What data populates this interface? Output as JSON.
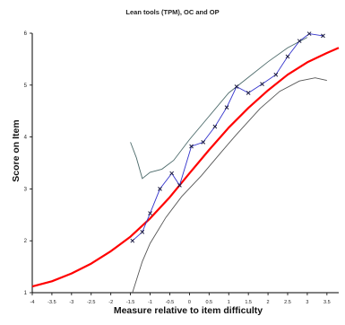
{
  "chart_data": {
    "type": "line",
    "title": "Lean tools (TPM), OC and OP",
    "xlabel": "Measure relative to item difficulty",
    "ylabel": "Score on Item",
    "xlim": [
      -4,
      3.8
    ],
    "ylim": [
      1,
      6
    ],
    "x_ticks": [
      -4,
      -3.5,
      -3,
      -2.5,
      -2,
      -1.5,
      -1,
      -0.5,
      0,
      0.5,
      1,
      1.5,
      2,
      2.5,
      3,
      3.5
    ],
    "x_tick_labels": [
      "-4",
      "-3.5",
      "-3",
      "-2.5",
      "-2",
      "-1.5",
      "-1",
      "-0.5",
      "0",
      "0.5",
      "1",
      "1.5",
      "2",
      "2.5",
      "3",
      "3.5"
    ],
    "y_ticks": [
      1,
      2,
      3,
      4,
      5,
      6
    ],
    "y_tick_labels": [
      "1",
      "2",
      "3",
      "4",
      "5",
      "6"
    ],
    "grid": false,
    "legend": "none",
    "colors": {
      "model_curve": "#ff0000",
      "observed": "#3333cc",
      "observed_marker": "#1a1a40",
      "upper_band": "#4d6b6b",
      "lower_band": "#555555",
      "axis": "#000000"
    },
    "series": [
      {
        "x": [
          -4.0,
          -3.5,
          -3.0,
          -2.5,
          -2.0,
          -1.5,
          -1.0,
          -0.5,
          0.0,
          0.5,
          1.0,
          1.5,
          2.0,
          2.5,
          3.0,
          3.5,
          3.8
        ],
        "y": [
          1.12,
          1.22,
          1.37,
          1.56,
          1.8,
          2.08,
          2.43,
          2.84,
          3.3,
          3.75,
          4.18,
          4.56,
          4.9,
          5.2,
          5.44,
          5.62,
          5.72
        ]
      },
      {
        "x": [
          -1.45,
          -1.2,
          -1.0,
          -0.75,
          -0.45,
          -0.25,
          0.05,
          0.35,
          0.65,
          0.95,
          1.2,
          1.5,
          1.85,
          2.2,
          2.5,
          2.8,
          3.05,
          3.4
        ],
        "y": [
          2.0,
          2.17,
          2.53,
          3.0,
          3.3,
          3.07,
          3.82,
          3.9,
          4.2,
          4.57,
          4.97,
          4.85,
          5.02,
          5.2,
          5.55,
          5.85,
          5.99,
          5.95
        ]
      },
      {
        "x": [
          -1.5,
          -1.35,
          -1.2,
          -1.0,
          -0.7,
          -0.4,
          0.0,
          0.5,
          1.0,
          1.5,
          2.0,
          2.5,
          3.0
        ],
        "y": [
          3.9,
          3.6,
          3.2,
          3.32,
          3.38,
          3.55,
          3.95,
          4.4,
          4.85,
          5.15,
          5.45,
          5.72,
          5.92
        ]
      },
      {
        "x": [
          -1.45,
          -1.2,
          -1.0,
          -0.6,
          -0.2,
          0.3,
          0.8,
          1.2,
          1.8,
          2.3,
          2.8,
          3.2,
          3.5
        ],
        "y": [
          1.0,
          1.6,
          1.95,
          2.45,
          2.85,
          3.25,
          3.7,
          4.05,
          4.55,
          4.88,
          5.08,
          5.14,
          5.09
        ]
      }
    ]
  }
}
